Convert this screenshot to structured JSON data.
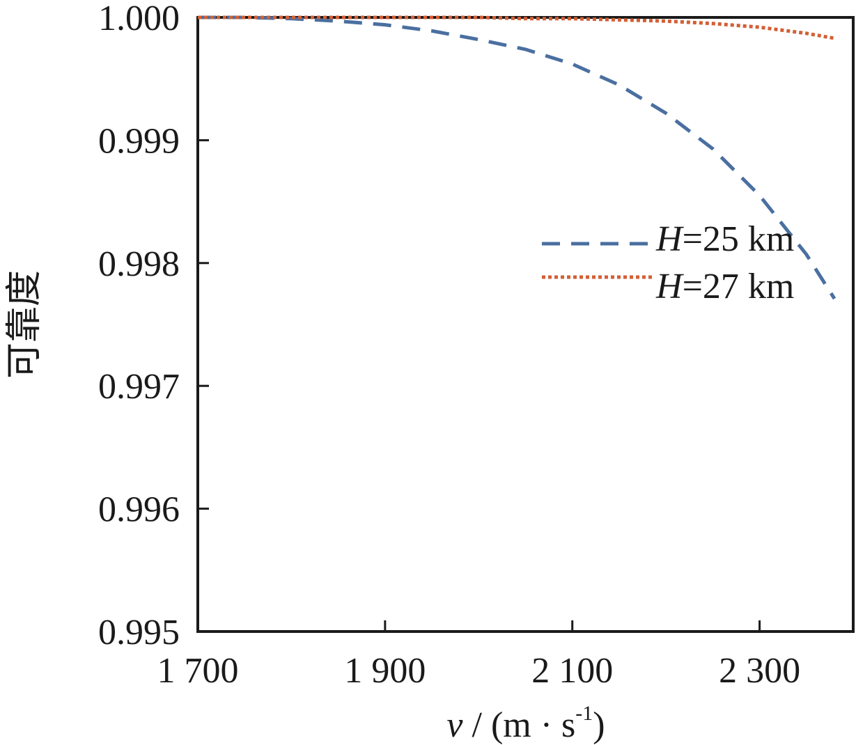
{
  "chart_data": {
    "type": "line",
    "title": "",
    "ylabel": "可靠度",
    "xlabel_var": "v",
    "xlabel_sep": " / ",
    "xlabel_unit": "(m · s",
    "xlabel_exp": "-1",
    "xlabel_close": ")",
    "xlim": [
      1700,
      2400
    ],
    "ylim": [
      0.995,
      1.0
    ],
    "x_ticks": [
      1700,
      1900,
      2100,
      2300
    ],
    "x_tick_labels": [
      "1 700",
      "1 900",
      "2 100",
      "2 300"
    ],
    "y_ticks": [
      0.995,
      0.996,
      0.997,
      0.998,
      0.999,
      1.0
    ],
    "y_tick_labels": [
      "0.995",
      "0.996",
      "0.997",
      "0.998",
      "0.999",
      "1.000"
    ],
    "grid": false,
    "legend_position": "right",
    "x": [
      1700,
      1750,
      1800,
      1850,
      1900,
      1950,
      2000,
      2050,
      2100,
      2150,
      2200,
      2250,
      2300,
      2350,
      2380
    ],
    "series": [
      {
        "name_var": "H",
        "name_rest": "=25 km",
        "color": "#4a6fa0",
        "dash": "dashed",
        "values": [
          1.0,
          1.0,
          0.99999,
          0.99997,
          0.99994,
          0.99989,
          0.99982,
          0.99974,
          0.99962,
          0.99945,
          0.99922,
          0.99893,
          0.99855,
          0.99807,
          0.99771
        ]
      },
      {
        "name_var": "H",
        "name_rest": "=27 km",
        "color": "#d35f35",
        "dash": "dotted",
        "values": [
          1.0,
          1.0,
          1.0,
          1.0,
          1.0,
          1.0,
          1.0,
          0.99999,
          0.99999,
          0.99998,
          0.99997,
          0.99995,
          0.99992,
          0.99987,
          0.99983
        ]
      }
    ]
  }
}
